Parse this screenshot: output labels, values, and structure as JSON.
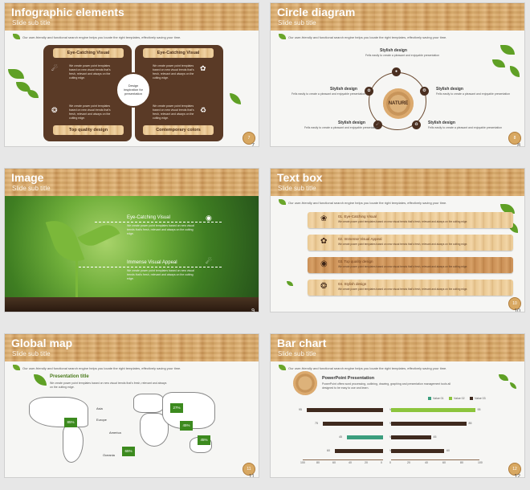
{
  "colors": {
    "wood": "#d6a767",
    "brown": "#5a3a26",
    "leaf": "#5fa025",
    "accent_green": "#8cc43c",
    "accent_teal": "#3b9e7e",
    "bar_dark": "#3f2a1e"
  },
  "common_desc": "Our user-friendly and functional search engine helps you locate the right templates, effectively saving your time.",
  "slides": [
    {
      "title": "Infographic elements",
      "subtitle": "Slide sub title",
      "number": "7",
      "labels": [
        "Eye-Catching Visual",
        "Eye-Catching Visual",
        "Top quality design",
        "Contemporary colors"
      ],
      "body": "We create power point templates based on new visual trends that's fresh, relevant and always on the cutting edge.",
      "center": "Design inspiration for presentation",
      "icons": [
        "lightbulb-icon",
        "leaf-icon",
        "ladybug-icon",
        "recycle-icon"
      ]
    },
    {
      "title": "Circle diagram",
      "subtitle": "Slide sub title",
      "number": "8",
      "center": "NATURE",
      "item_title": "Stylish design",
      "item_desc": "Fells easily to create a pleasant and enjoyable presentation"
    },
    {
      "title": "Image",
      "subtitle": "Slide sub title",
      "number": "9",
      "blocks": [
        {
          "title": "Eye-Catching Visual",
          "desc": "We create power point templates based on new visual trends that's fresh, relevant and always on the cutting edge."
        },
        {
          "title": "Immense Visual Appeal",
          "desc": "We create power point templates based on new visual trends that's fresh, relevant and always on the cutting edge."
        }
      ]
    },
    {
      "title": "Text box",
      "subtitle": "Slide sub title",
      "number": "10",
      "items": [
        "01. Eye-Catching Visual",
        "02. Immense Visual Appeal",
        "03. Top quality design",
        "04. Stylish design"
      ],
      "item_desc": "We create power point templates based on new visual trends that's fresh, relevant and always on the cutting edge."
    },
    {
      "title": "Global map",
      "subtitle": "Slide sub title",
      "number": "11",
      "presentation_title": "Presentation title",
      "presentation_desc": "We create power point templates based on new visual trends that's fresh, relevant and always on the cutting edge.",
      "regions": [
        "Asia",
        "Europe",
        "America",
        "Oceania"
      ],
      "badges": [
        "27%",
        "85%",
        "45%",
        "65%",
        "45%"
      ]
    },
    {
      "title": "Bar chart",
      "subtitle": "Slide sub title",
      "number": "12",
      "heading": "PowerPoint Presentation",
      "heading_desc": "PowerPoint offers word processing, outlining, drawing, graphing and presentation management tools all designed to be easy to use and learn."
    }
  ],
  "chart_data": {
    "type": "bar",
    "title": "",
    "legend": [
      "Value 01",
      "Value 02",
      "Value 03"
    ],
    "left_chart": {
      "categories": [
        "Value 01",
        "Value 02",
        "Value 03",
        "Value 04"
      ],
      "values": [
        95,
        75,
        45,
        60
      ],
      "xlim": [
        100,
        0
      ],
      "ticks": [
        100,
        80,
        60,
        40,
        20,
        0
      ]
    },
    "right_chart": {
      "categories": [
        "Value 01",
        "Value 02",
        "Value 03",
        "Value 04"
      ],
      "values": [
        95,
        85,
        45,
        60
      ],
      "xlim": [
        0,
        100
      ],
      "ticks": [
        0,
        20,
        40,
        60,
        80,
        100
      ]
    }
  }
}
